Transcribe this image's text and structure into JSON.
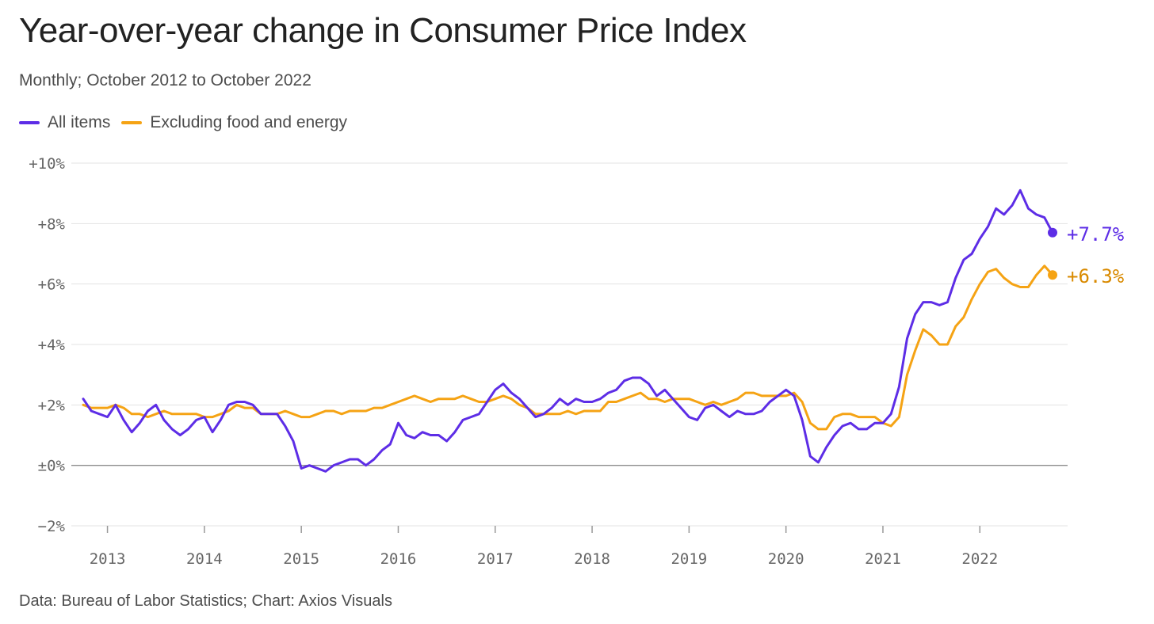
{
  "title": "Year-over-year change in Consumer Price Index",
  "subtitle": "Monthly; October 2012 to October 2022",
  "source": "Data: Bureau of Labor Statistics; Chart: Axios Visuals",
  "colors": {
    "all_items": "#5d2de6",
    "core": "#f5a314",
    "core_label": "#d98a00",
    "grid": "#e3e3e3",
    "zero": "#8c8c8c",
    "tick_text": "#666666"
  },
  "chart_data": {
    "type": "line",
    "title": "Year-over-year change in Consumer Price Index",
    "subtitle": "Monthly; October 2012 to October 2022",
    "xlabel": "",
    "ylabel": "",
    "xlim": [
      "2012-10",
      "2022-10"
    ],
    "ylim": [
      -2,
      10
    ],
    "y_ticks": [
      -2,
      0,
      2,
      4,
      6,
      8,
      10
    ],
    "y_tick_labels": [
      "−2%",
      "±0%",
      "+2%",
      "+4%",
      "+6%",
      "+8%",
      "+10%"
    ],
    "x_ticks": [
      "2013-01",
      "2014-01",
      "2015-01",
      "2016-01",
      "2017-01",
      "2018-01",
      "2019-01",
      "2020-01",
      "2021-01",
      "2022-01"
    ],
    "x_tick_labels": [
      "2013",
      "2014",
      "2015",
      "2016",
      "2017",
      "2018",
      "2019",
      "2020",
      "2021",
      "2022"
    ],
    "grid": true,
    "legend": "top-left",
    "series": [
      {
        "name": "All items",
        "end_label": "+7.7%",
        "values": [
          2.2,
          1.8,
          1.7,
          1.6,
          2.0,
          1.5,
          1.1,
          1.4,
          1.8,
          2.0,
          1.5,
          1.2,
          1.0,
          1.2,
          1.5,
          1.6,
          1.1,
          1.5,
          2.0,
          2.1,
          2.1,
          2.0,
          1.7,
          1.7,
          1.7,
          1.3,
          0.8,
          -0.1,
          0.0,
          -0.1,
          -0.2,
          0.0,
          0.1,
          0.2,
          0.2,
          0.0,
          0.2,
          0.5,
          0.7,
          1.4,
          1.0,
          0.9,
          1.1,
          1.0,
          1.0,
          0.8,
          1.1,
          1.5,
          1.6,
          1.7,
          2.1,
          2.5,
          2.7,
          2.4,
          2.2,
          1.9,
          1.6,
          1.7,
          1.9,
          2.2,
          2.0,
          2.2,
          2.1,
          2.1,
          2.2,
          2.4,
          2.5,
          2.8,
          2.9,
          2.9,
          2.7,
          2.3,
          2.5,
          2.2,
          1.9,
          1.6,
          1.5,
          1.9,
          2.0,
          1.8,
          1.6,
          1.8,
          1.7,
          1.7,
          1.8,
          2.1,
          2.3,
          2.5,
          2.3,
          1.5,
          0.3,
          0.1,
          0.6,
          1.0,
          1.3,
          1.4,
          1.2,
          1.2,
          1.4,
          1.4,
          1.7,
          2.6,
          4.2,
          5.0,
          5.4,
          5.4,
          5.3,
          5.4,
          6.2,
          6.8,
          7.0,
          7.5,
          7.9,
          8.5,
          8.3,
          8.6,
          9.1,
          8.5,
          8.3,
          8.2,
          7.7
        ]
      },
      {
        "name": "Excluding food and energy",
        "end_label": "+6.3%",
        "values": [
          2.0,
          1.9,
          1.9,
          1.9,
          2.0,
          1.9,
          1.7,
          1.7,
          1.6,
          1.7,
          1.8,
          1.7,
          1.7,
          1.7,
          1.7,
          1.6,
          1.6,
          1.7,
          1.8,
          2.0,
          1.9,
          1.9,
          1.7,
          1.7,
          1.7,
          1.8,
          1.7,
          1.6,
          1.6,
          1.7,
          1.8,
          1.8,
          1.7,
          1.8,
          1.8,
          1.8,
          1.9,
          1.9,
          2.0,
          2.1,
          2.2,
          2.3,
          2.2,
          2.1,
          2.2,
          2.2,
          2.2,
          2.3,
          2.2,
          2.1,
          2.1,
          2.2,
          2.3,
          2.2,
          2.0,
          1.9,
          1.7,
          1.7,
          1.7,
          1.7,
          1.8,
          1.7,
          1.8,
          1.8,
          1.8,
          2.1,
          2.1,
          2.2,
          2.3,
          2.4,
          2.2,
          2.2,
          2.1,
          2.2,
          2.2,
          2.2,
          2.1,
          2.0,
          2.1,
          2.0,
          2.1,
          2.2,
          2.4,
          2.4,
          2.3,
          2.3,
          2.3,
          2.3,
          2.4,
          2.1,
          1.4,
          1.2,
          1.2,
          1.6,
          1.7,
          1.7,
          1.6,
          1.6,
          1.6,
          1.4,
          1.3,
          1.6,
          3.0,
          3.8,
          4.5,
          4.3,
          4.0,
          4.0,
          4.6,
          4.9,
          5.5,
          6.0,
          6.4,
          6.5,
          6.2,
          6.0,
          5.9,
          5.9,
          6.3,
          6.6,
          6.3
        ]
      }
    ]
  }
}
